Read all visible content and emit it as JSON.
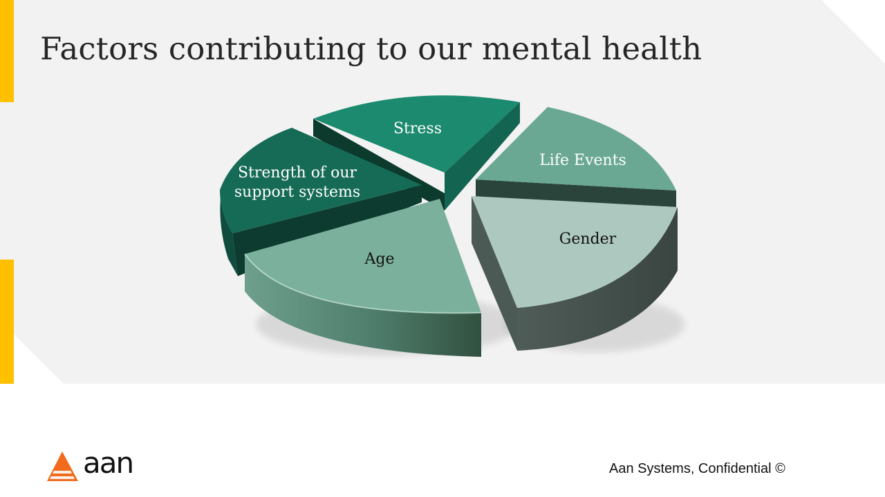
{
  "slide": {
    "title": "Factors contributing to our mental health"
  },
  "diagram": {
    "type": "exploded-3d-pie",
    "segments": [
      {
        "label_lines": [
          "Stress"
        ],
        "color": "#1b8a6e",
        "text_color": "#ffffff"
      },
      {
        "label_lines": [
          "Life Events"
        ],
        "color": "#6aa894",
        "text_color": "#ffffff"
      },
      {
        "label_lines": [
          "Gender"
        ],
        "color": "#adc8bf",
        "text_color": "#111111"
      },
      {
        "label_lines": [
          "Age"
        ],
        "color": "#7bb09c",
        "text_color": "#111111"
      },
      {
        "label_lines": [
          "Strength of our",
          "support systems"
        ],
        "color": "#166b56",
        "text_color": "#ffffff"
      }
    ]
  },
  "colors": {
    "accent_bar": "#ffc000",
    "panel_bg": "#f2f2f2",
    "logo_orange": "#f26b1d"
  },
  "footer": {
    "text": "Aan Systems, Confidential ©",
    "logo_text": "aan",
    "logo_icon": "triangle-logo-icon"
  }
}
